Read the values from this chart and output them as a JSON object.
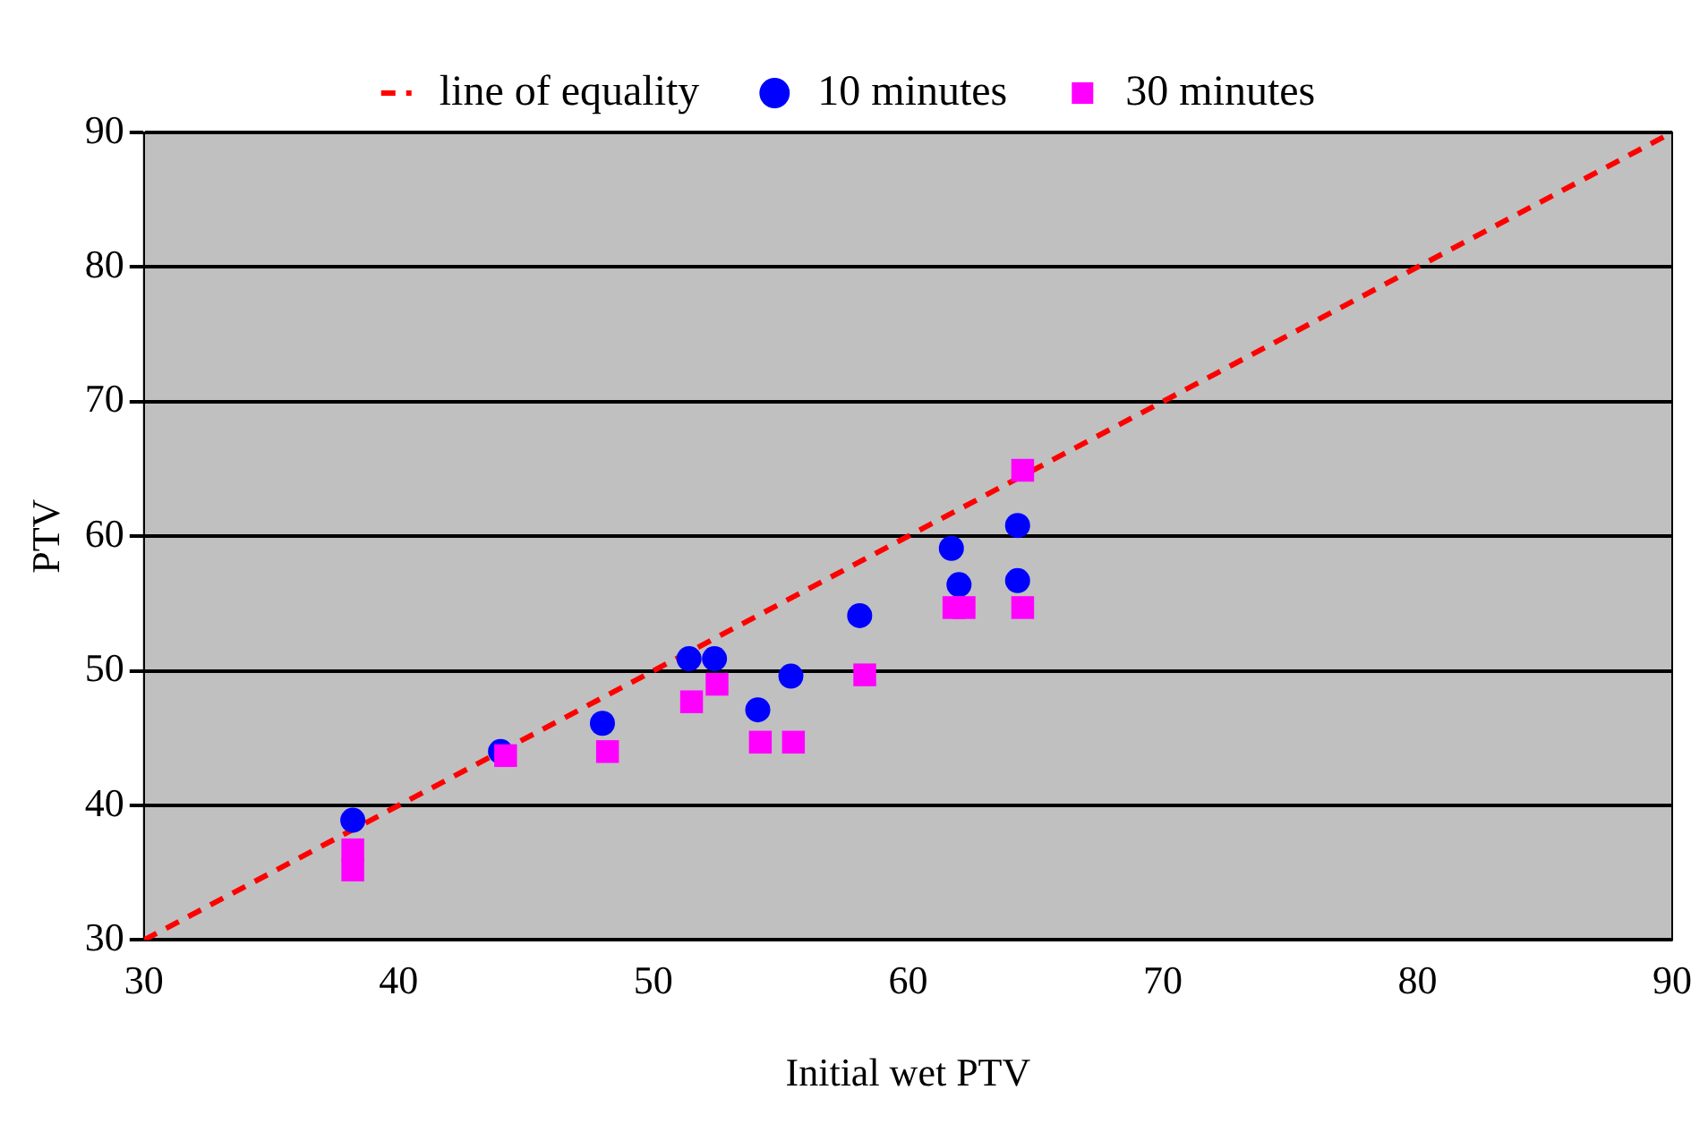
{
  "chart_data": {
    "type": "scatter",
    "xlabel": "Initial wet PTV",
    "ylabel": "PTV",
    "xlim": [
      30,
      90
    ],
    "ylim": [
      30,
      90
    ],
    "xticks": [
      30,
      40,
      50,
      60,
      70,
      80,
      90
    ],
    "yticks": [
      30,
      40,
      50,
      60,
      70,
      80,
      90
    ],
    "grid": "y",
    "legend": "top",
    "series": [
      {
        "name": "line of equality",
        "type": "line",
        "color": "#ff0000",
        "line_style": "dashed",
        "marker": "none",
        "x": [
          30,
          90
        ],
        "values": [
          30,
          90
        ]
      },
      {
        "name": "10 minutes",
        "type": "scatter",
        "color": "#0000ff",
        "marker": "circle",
        "x": [
          38.2,
          44.0,
          48.0,
          51.4,
          52.4,
          54.1,
          55.4,
          58.1,
          61.7,
          62.0,
          64.3,
          64.3
        ],
        "values": [
          38.9,
          44.0,
          46.1,
          50.9,
          50.9,
          47.1,
          49.6,
          54.1,
          59.1,
          56.4,
          60.8,
          56.7
        ]
      },
      {
        "name": "30 minutes",
        "type": "scatter",
        "color": "#ff00ff",
        "marker": "square",
        "x": [
          38.2,
          38.2,
          44.2,
          48.2,
          51.5,
          52.5,
          54.2,
          55.5,
          58.3,
          61.8,
          62.2,
          64.5,
          64.5
        ],
        "values": [
          36.7,
          35.2,
          43.7,
          44.0,
          47.7,
          49.0,
          44.7,
          44.7,
          49.7,
          54.7,
          54.7,
          64.9,
          54.7
        ]
      }
    ]
  }
}
